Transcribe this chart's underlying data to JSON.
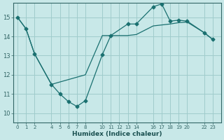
{
  "xlabel": "Humidex (Indice chaleur)",
  "bg_color": "#c8e8e8",
  "line_color": "#1a7070",
  "grid_color": "#a0cccc",
  "xlim": [
    -0.5,
    24.0
  ],
  "ylim": [
    9.5,
    15.75
  ],
  "xticks": [
    0,
    1,
    2,
    4,
    5,
    6,
    7,
    8,
    10,
    11,
    12,
    13,
    14,
    16,
    17,
    18,
    19,
    20,
    22,
    23
  ],
  "yticks": [
    10,
    11,
    12,
    13,
    14,
    15
  ],
  "line1_x": [
    0,
    1,
    2,
    4,
    5,
    6,
    7,
    8,
    10,
    11,
    13,
    14,
    16,
    17,
    18,
    19,
    20,
    22,
    23
  ],
  "line1_y": [
    15.0,
    14.4,
    13.1,
    11.5,
    11.0,
    10.6,
    10.35,
    10.65,
    13.05,
    14.05,
    14.65,
    14.65,
    15.55,
    15.7,
    14.8,
    14.85,
    14.8,
    14.2,
    13.85
  ],
  "line2_x": [
    0,
    1,
    2,
    4,
    8,
    10,
    11,
    12,
    13,
    14,
    16,
    17,
    18,
    19,
    20,
    22,
    23
  ],
  "line2_y": [
    15.0,
    14.4,
    13.1,
    11.5,
    12.0,
    14.05,
    14.05,
    14.05,
    14.05,
    14.1,
    14.55,
    14.6,
    14.65,
    14.72,
    14.75,
    14.2,
    13.85
  ]
}
